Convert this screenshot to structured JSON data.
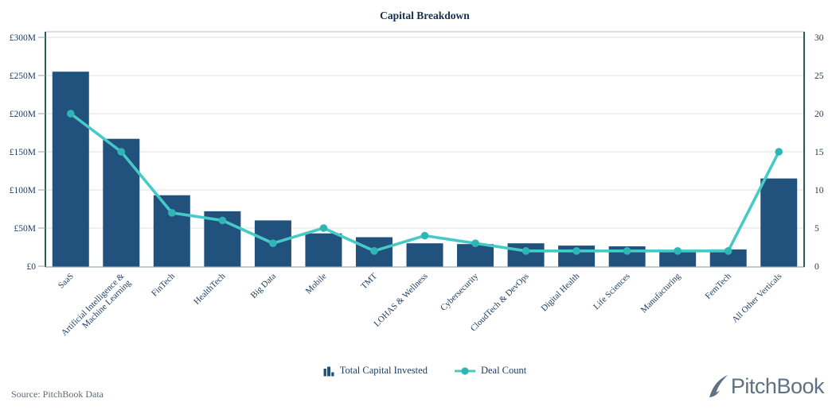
{
  "title": "Capital Breakdown",
  "legend": {
    "items": [
      {
        "label": "Total Capital Invested",
        "series": "bars",
        "icon": "mini-bar-chart-icon"
      },
      {
        "label": "Deal Count",
        "series": "line",
        "icon": "line-with-dot-icon"
      }
    ]
  },
  "footer": {
    "source": "Source: PitchBook Data",
    "logo_text": "PitchBook",
    "logo_icon": "quill-icon"
  },
  "colors": {
    "bar": "#21527e",
    "line": "#47c9c7",
    "dot": "#2fb5b5",
    "axis_text": "#1b3a5c",
    "title_text": "#15314d",
    "grid": "#dcdfe2",
    "axis_side_border": "#265c5c",
    "axis_bottom_border": "#a9bcbc",
    "tick_mark": "#9aa5ad",
    "source_text": "#5a6b7c",
    "logo": "#5e7284"
  },
  "chart_data": {
    "type": "bar",
    "subtype": "combo bar+line, dual y-axis",
    "title": "Capital Breakdown",
    "categories": [
      "SaaS",
      "Artificial Intelligence & Machine Learning",
      "FinTech",
      "HealthTech",
      "Big Data",
      "Mobile",
      "TMT",
      "LOHAS & Wellness",
      "Cybersecurity",
      "CloudTech & DevOps",
      "Digital Health",
      "Life Sciences",
      "Manufacturing",
      "FemTech",
      "All Other Verticals"
    ],
    "series": [
      {
        "name": "Total Capital Invested",
        "type": "bar",
        "axis": "left",
        "unit": "£M",
        "values": [
          255,
          167,
          93,
          72,
          60,
          43,
          38,
          30,
          29,
          30,
          27,
          26,
          19,
          22,
          115
        ]
      },
      {
        "name": "Deal Count",
        "type": "line",
        "axis": "right",
        "values": [
          20,
          15,
          7,
          6,
          3,
          5,
          2,
          4,
          3,
          2,
          2,
          2,
          2,
          2,
          15
        ]
      }
    ],
    "left_axis": {
      "ticks": [
        "£0",
        "£50M",
        "£100M",
        "£150M",
        "£200M",
        "£250M",
        "£300M"
      ],
      "min": 0,
      "max": 300
    },
    "right_axis": {
      "ticks": [
        "0",
        "5",
        "10",
        "15",
        "20",
        "25",
        "30"
      ],
      "min": 0,
      "max": 30
    },
    "grid": true,
    "legend_position": "bottom"
  }
}
